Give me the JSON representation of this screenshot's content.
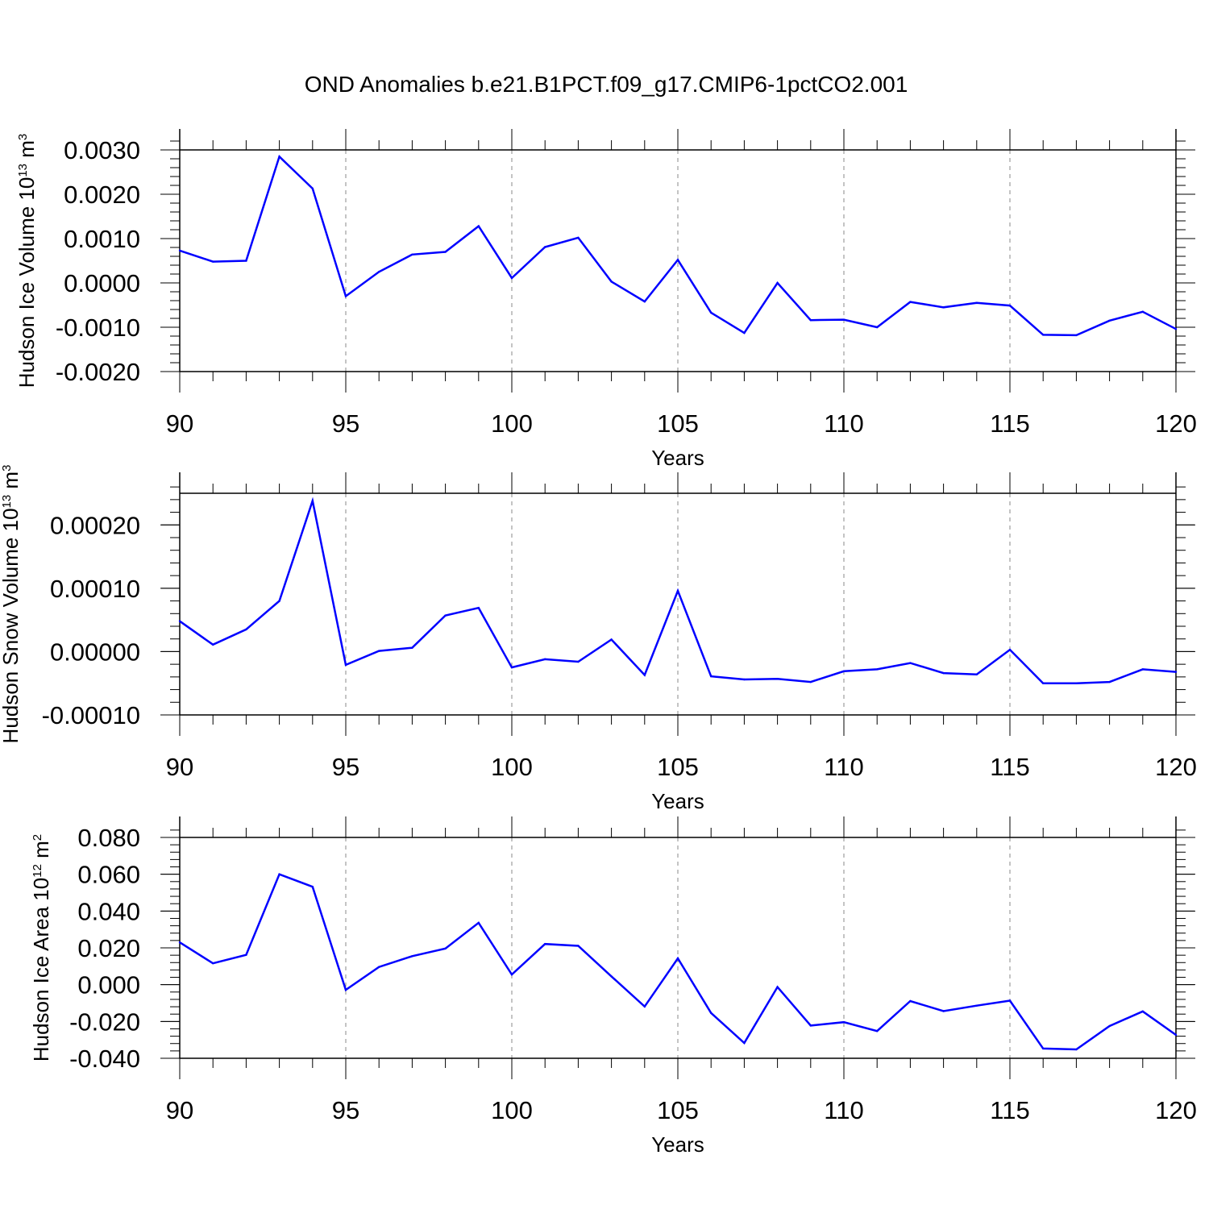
{
  "title": "OND Anomalies b.e21.B1PCT.f09_g17.CMIP6-1pctCO2.001",
  "colors": {
    "line": "#0000ff",
    "frame": "#000000",
    "grid": "#888888"
  },
  "chart_data": [
    {
      "type": "line",
      "xlabel": "Years",
      "ylabel": {
        "text": "Hudson Ice Volume 10",
        "exp": "13",
        "unit": " m",
        "unit_exp": "3"
      },
      "xlim": [
        90,
        120
      ],
      "ylim": [
        -0.002,
        0.003
      ],
      "xticks": [
        90,
        95,
        100,
        105,
        110,
        115,
        120
      ],
      "xtick_labels": [
        "90",
        "95",
        "100",
        "105",
        "110",
        "115",
        "120"
      ],
      "yticks": [
        -0.002,
        -0.001,
        0.0,
        0.001,
        0.002,
        0.003
      ],
      "ytick_labels": [
        "-0.0020",
        "-0.0010",
        "0.0000",
        "0.0010",
        "0.0020",
        "0.0030"
      ],
      "x": [
        90,
        91,
        92,
        93,
        94,
        95,
        96,
        97,
        98,
        99,
        100,
        101,
        102,
        103,
        104,
        105,
        106,
        107,
        108,
        109,
        110,
        111,
        112,
        113,
        114,
        115,
        116,
        117,
        118,
        119,
        120
      ],
      "values": [
        0.00073,
        0.00048,
        0.0005,
        0.00285,
        0.00213,
        -0.0003,
        0.00025,
        0.00064,
        0.0007,
        0.00128,
        0.00011,
        0.00081,
        0.00102,
        3e-05,
        -0.00042,
        0.00052,
        -0.00067,
        -0.00113,
        0.0,
        -0.00084,
        -0.00083,
        -0.001,
        -0.00043,
        -0.00055,
        -0.00045,
        -0.00051,
        -0.00117,
        -0.00118,
        -0.00085,
        -0.00065,
        -0.00104
      ]
    },
    {
      "type": "line",
      "xlabel": "Years",
      "ylabel": {
        "text": "Hudson Snow Volume 10",
        "exp": "13",
        "unit": " m",
        "unit_exp": "3"
      },
      "xlim": [
        90,
        120
      ],
      "ylim": [
        -0.0001,
        0.00025
      ],
      "xticks": [
        90,
        95,
        100,
        105,
        110,
        115,
        120
      ],
      "xtick_labels": [
        "90",
        "95",
        "100",
        "105",
        "110",
        "115",
        "120"
      ],
      "yticks": [
        -0.0001,
        0.0,
        0.0001,
        0.0002
      ],
      "ytick_labels": [
        "-0.00010",
        "0.00000",
        "0.00010",
        "0.00020"
      ],
      "x": [
        90,
        91,
        92,
        93,
        94,
        95,
        96,
        97,
        98,
        99,
        100,
        101,
        102,
        103,
        104,
        105,
        106,
        107,
        108,
        109,
        110,
        111,
        112,
        113,
        114,
        115,
        116,
        117,
        118,
        119,
        120
      ],
      "values": [
        4.8e-05,
        1.1e-05,
        3.5e-05,
        8e-05,
        0.000238,
        -2.1e-05,
        1e-06,
        6e-06,
        5.7e-05,
        6.9e-05,
        -2.5e-05,
        -1.2e-05,
        -1.6e-05,
        1.9e-05,
        -3.7e-05,
        9.6e-05,
        -3.9e-05,
        -4.4e-05,
        -4.3e-05,
        -4.8e-05,
        -3.1e-05,
        -2.8e-05,
        -1.8e-05,
        -3.4e-05,
        -3.6e-05,
        3e-06,
        -5e-05,
        -5e-05,
        -4.8e-05,
        -2.8e-05,
        -3.2e-05
      ]
    },
    {
      "type": "line",
      "xlabel": "Years",
      "ylabel": {
        "text": "Hudson Ice Area 10",
        "exp": "12",
        "unit": " m",
        "unit_exp": "2"
      },
      "xlim": [
        90,
        120
      ],
      "ylim": [
        -0.04,
        0.08
      ],
      "xticks": [
        90,
        95,
        100,
        105,
        110,
        115,
        120
      ],
      "xtick_labels": [
        "90",
        "95",
        "100",
        "105",
        "110",
        "115",
        "120"
      ],
      "yticks": [
        -0.04,
        -0.02,
        0.0,
        0.02,
        0.04,
        0.06,
        0.08
      ],
      "ytick_labels": [
        "-0.040",
        "-0.020",
        "0.000",
        "0.020",
        "0.040",
        "0.060",
        "0.080"
      ],
      "x": [
        90,
        91,
        92,
        93,
        94,
        95,
        96,
        97,
        98,
        99,
        100,
        101,
        102,
        103,
        104,
        105,
        106,
        107,
        108,
        109,
        110,
        111,
        112,
        113,
        114,
        115,
        116,
        117,
        118,
        119,
        120
      ],
      "values": [
        0.023,
        0.0116,
        0.0162,
        0.06,
        0.0532,
        -0.0028,
        0.0096,
        0.0155,
        0.0196,
        0.0336,
        0.0055,
        0.0221,
        0.0211,
        0.0045,
        -0.0119,
        0.0143,
        -0.0154,
        -0.0317,
        -0.0013,
        -0.0222,
        -0.0204,
        -0.0252,
        -0.0089,
        -0.0144,
        -0.0114,
        -0.0087,
        -0.0347,
        -0.0352,
        -0.0225,
        -0.0145,
        -0.0273
      ]
    }
  ]
}
